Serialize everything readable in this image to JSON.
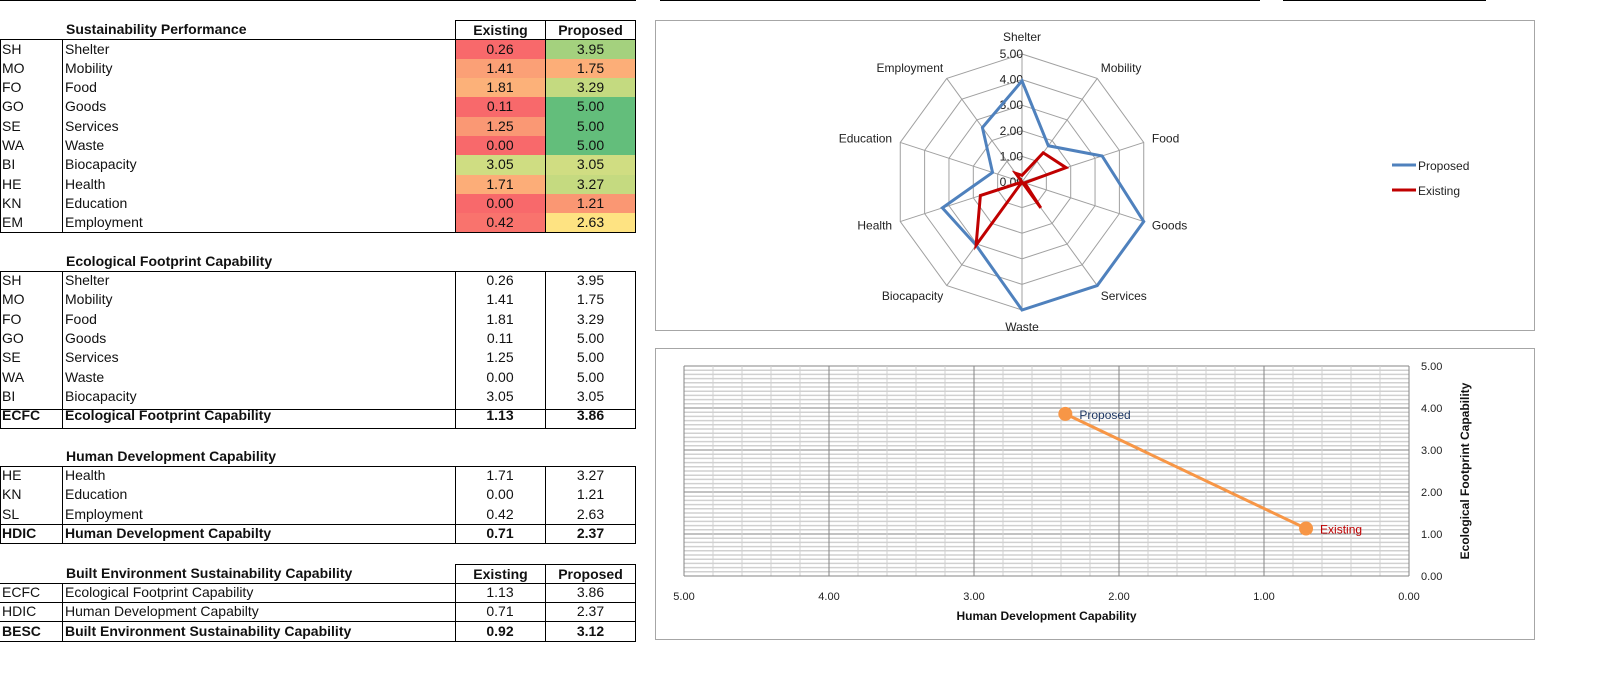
{
  "sustainability": {
    "title": "Sustainability Performance",
    "col_existing": "Existing",
    "col_proposed": "Proposed",
    "rows": [
      {
        "code": "SH",
        "label": "Shelter",
        "existing": "0.26",
        "proposed": "3.95",
        "existing_color": "#f8696b",
        "proposed_color": "#a4d17e"
      },
      {
        "code": "MO",
        "label": "Mobility",
        "existing": "1.41",
        "proposed": "1.75",
        "existing_color": "#fba076",
        "proposed_color": "#fcae78"
      },
      {
        "code": "FO",
        "label": "Food",
        "existing": "1.81",
        "proposed": "3.29",
        "existing_color": "#fcb179",
        "proposed_color": "#c4da80"
      },
      {
        "code": "GO",
        "label": "Goods",
        "existing": "0.11",
        "proposed": "5.00",
        "existing_color": "#f8696b",
        "proposed_color": "#63be7b"
      },
      {
        "code": "SE",
        "label": "Services",
        "existing": "1.25",
        "proposed": "5.00",
        "existing_color": "#fa9874",
        "proposed_color": "#63be7b"
      },
      {
        "code": "WA",
        "label": "Waste",
        "existing": "0.00",
        "proposed": "5.00",
        "existing_color": "#f8696b",
        "proposed_color": "#63be7b"
      },
      {
        "code": "BI",
        "label": "Biocapacity",
        "existing": "3.05",
        "proposed": "3.05",
        "existing_color": "#cfdd82",
        "proposed_color": "#d0dd82"
      },
      {
        "code": "HE",
        "label": "Health",
        "existing": "1.71",
        "proposed": "3.27",
        "existing_color": "#fcad78",
        "proposed_color": "#c5da80"
      },
      {
        "code": "KN",
        "label": "Education",
        "existing": "0.00",
        "proposed": "1.21",
        "existing_color": "#f8696b",
        "proposed_color": "#fa9773"
      },
      {
        "code": "EM",
        "label": "Employment",
        "existing": "0.42",
        "proposed": "2.63",
        "existing_color": "#f9736d",
        "proposed_color": "#fee382"
      }
    ]
  },
  "ecological": {
    "title": "Ecological Footprint Capability",
    "rows": [
      {
        "code": "SH",
        "label": "Shelter",
        "existing": "0.26",
        "proposed": "3.95"
      },
      {
        "code": "MO",
        "label": "Mobility",
        "existing": "1.41",
        "proposed": "1.75"
      },
      {
        "code": "FO",
        "label": "Food",
        "existing": "1.81",
        "proposed": "3.29"
      },
      {
        "code": "GO",
        "label": "Goods",
        "existing": "0.11",
        "proposed": "5.00"
      },
      {
        "code": "SE",
        "label": "Services",
        "existing": "1.25",
        "proposed": "5.00"
      },
      {
        "code": "WA",
        "label": "Waste",
        "existing": "0.00",
        "proposed": "5.00"
      },
      {
        "code": "BI",
        "label": "Biocapacity",
        "existing": "3.05",
        "proposed": "3.05"
      }
    ],
    "total": {
      "code": "ECFC",
      "label": "Ecological Footprint Capability",
      "existing": "1.13",
      "proposed": "3.86"
    }
  },
  "human": {
    "title": "Human Development Capability",
    "rows": [
      {
        "code": "HE",
        "label": "Health",
        "existing": "1.71",
        "proposed": "3.27"
      },
      {
        "code": "KN",
        "label": "Education",
        "existing": "0.00",
        "proposed": "1.21"
      },
      {
        "code": "SL",
        "label": "Employment",
        "existing": "0.42",
        "proposed": "2.63"
      }
    ],
    "total": {
      "code": "HDIC",
      "label": "Human Development Capabilty",
      "existing": "0.71",
      "proposed": "2.37"
    }
  },
  "built": {
    "title": "Built Environment Sustainability Capability",
    "col_existing": "Existing",
    "col_proposed": "Proposed",
    "rows": [
      {
        "code": "ECFC",
        "label": "Ecological Footprint Capability",
        "existing": "1.13",
        "proposed": "3.86"
      },
      {
        "code": "HDIC",
        "label": "Human Development Capabilty",
        "existing": "0.71",
        "proposed": "2.37"
      }
    ],
    "total": {
      "code": "BESC",
      "label": "Built Environment Sustainability Capability",
      "existing": "0.92",
      "proposed": "3.12"
    }
  },
  "chart_data": [
    {
      "type": "radar",
      "categories": [
        "Shelter",
        "Mobility",
        "Food",
        "Goods",
        "Services",
        "Waste",
        "Biocapacity",
        "Health",
        "Education",
        "Employment"
      ],
      "ticks": [
        "0.00",
        "1.00",
        "2.00",
        "3.00",
        "4.00",
        "5.00"
      ],
      "range": [
        0,
        5
      ],
      "grid": true,
      "legend": "right",
      "series": [
        {
          "name": "Proposed",
          "color": "#4f81bd",
          "values": [
            3.95,
            1.75,
            3.29,
            5.0,
            5.0,
            5.0,
            3.05,
            3.27,
            1.21,
            2.63
          ]
        },
        {
          "name": "Existing",
          "color": "#c00000",
          "values": [
            0.26,
            1.41,
            1.81,
            0.11,
            1.25,
            0.0,
            3.05,
            1.71,
            0.0,
            0.42
          ]
        }
      ]
    },
    {
      "type": "scatter",
      "xlabel": "Human Development Capability",
      "ylabel": "Ecological Footprint Capability",
      "xlim": [
        5,
        0
      ],
      "ylim": [
        0,
        5
      ],
      "x_reversed": true,
      "y_axis_side": "right",
      "xticks": [
        "5.00",
        "4.00",
        "3.00",
        "2.00",
        "1.00",
        "0.00"
      ],
      "yticks": [
        "0.00",
        "1.00",
        "2.00",
        "3.00",
        "4.00",
        "5.00"
      ],
      "grid": true,
      "line_color": "#f79646",
      "points": [
        {
          "label": "Proposed",
          "x": 2.37,
          "y": 3.86,
          "label_color": "#1f3864"
        },
        {
          "label": "Existing",
          "x": 0.71,
          "y": 1.13,
          "label_color": "#c00000"
        }
      ]
    }
  ]
}
